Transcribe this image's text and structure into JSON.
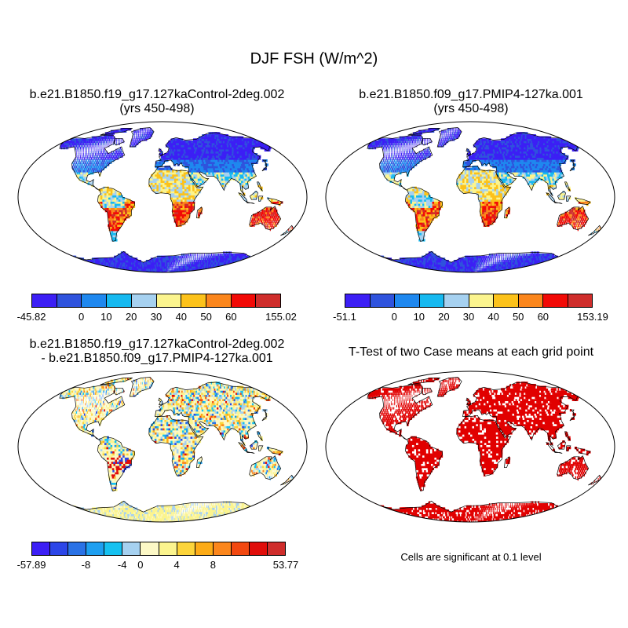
{
  "title": "DJF FSH (W/m^2)",
  "panels": [
    {
      "line1": "b.e21.B1850.f19_g17.127kaControl-2deg.002",
      "line2": "(yrs 450-498)",
      "colorbar": {
        "labels": [
          "-45.82",
          "0",
          "10",
          "20",
          "30",
          "40",
          "50",
          "60",
          "155.02"
        ],
        "colors": [
          "#3c1ff5",
          "#2f53dd",
          "#1f88ef",
          "#16b9f0",
          "#a6d1f0",
          "#fbf48e",
          "#fcc21a",
          "#fb861c",
          "#f20a06",
          "#cf2d2b"
        ]
      }
    },
    {
      "line1": "b.e21.B1850.f09_g17.PMIP4-127ka.001",
      "line2": "(yrs 450-498)",
      "colorbar": {
        "labels": [
          "-51.1",
          "0",
          "10",
          "20",
          "30",
          "40",
          "50",
          "60",
          "153.19"
        ],
        "colors": [
          "#3c1ff5",
          "#2f53dd",
          "#1f88ef",
          "#16b9f0",
          "#a6d1f0",
          "#fbf48e",
          "#fcc21a",
          "#fb861c",
          "#f20a06",
          "#cf2d2b"
        ]
      }
    },
    {
      "line1": "b.e21.B1850.f19_g17.127kaControl-2deg.002",
      "line2": "- b.e21.B1850.f09_g17.PMIP4-127ka.001",
      "colorbar": {
        "labels": [
          "-57.89",
          "-8",
          "-4",
          "0",
          "4",
          "8",
          "53.77"
        ],
        "colors": [
          "#3c1ff5",
          "#2c46e8",
          "#2a72e6",
          "#1e9ff0",
          "#16c1f0",
          "#a6d1f0",
          "#fcf8c6",
          "#fbf48e",
          "#fcd43a",
          "#fcab17",
          "#fb861c",
          "#f24810",
          "#e00d0a",
          "#cf2d2b"
        ]
      }
    },
    {
      "line1": "T-Test of two Case means at each grid point",
      "line2": "",
      "note": "Cells are significant at 0.1 level"
    }
  ]
}
